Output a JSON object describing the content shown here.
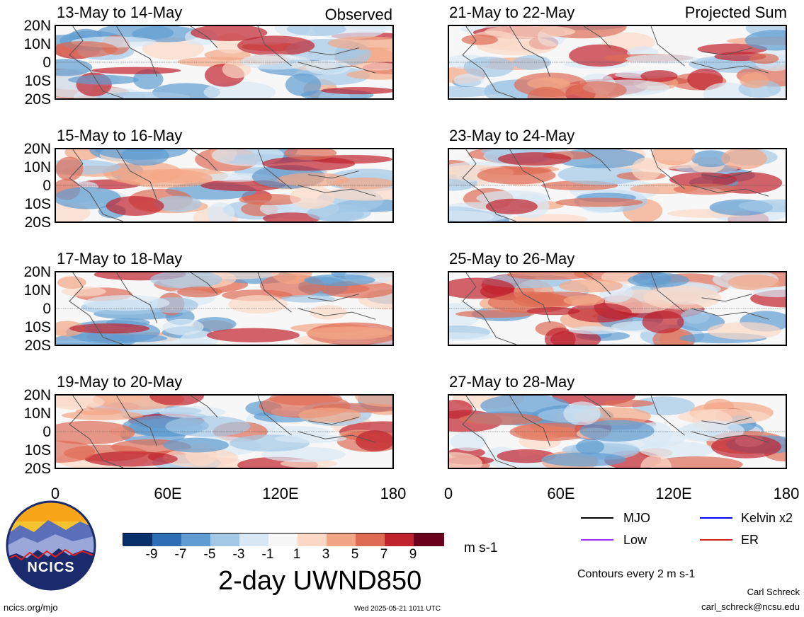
{
  "colors": {
    "neg9": "#08306b",
    "neg7": "#2e6eb5",
    "neg5": "#5f9cd1",
    "neg3": "#a3c8e6",
    "neg1": "#d8e8f5",
    "zero": "#f7f7f7",
    "pos1": "#fbd9c6",
    "pos3": "#f3a685",
    "pos5": "#de6c55",
    "pos7": "#c0222e",
    "pos9": "#6b001c",
    "mjo": "#000000",
    "low": "#9b30ff",
    "kelvin": "#0000ff",
    "er": "#cc2222"
  },
  "panels_left": [
    {
      "title": "13-May to 14-May",
      "label_right": "Observed"
    },
    {
      "title": "15-May to 16-May",
      "label_right": ""
    },
    {
      "title": "17-May to 18-May",
      "label_right": ""
    },
    {
      "title": "19-May to 20-May",
      "label_right": ""
    }
  ],
  "panels_right": [
    {
      "title": "21-May to 22-May",
      "label_right": "Projected Sum"
    },
    {
      "title": "23-May to 24-May",
      "label_right": ""
    },
    {
      "title": "25-May to 26-May",
      "label_right": ""
    },
    {
      "title": "27-May to 28-May",
      "label_right": ""
    }
  ],
  "y_ticks": [
    "20N",
    "10N",
    "0",
    "10S",
    "20S"
  ],
  "x_ticks": [
    "0",
    "60E",
    "120E",
    "180"
  ],
  "colorbar": {
    "ticks": [
      "-9",
      "-7",
      "-5",
      "-3",
      "-1",
      "1",
      "3",
      "5",
      "7",
      "9"
    ],
    "units": "m s-1",
    "title": "2-day UWND850"
  },
  "legend": {
    "mjo": "MJO",
    "kelvin": "Kelvin x2",
    "low": "Low",
    "er": "ER",
    "contours_note": "Contours every 2 m s-1"
  },
  "logo_text": "NCICS",
  "footer": {
    "left_url": "ncics.org/mjo",
    "timestamp": "Wed 2025-05-21 1011 UTC",
    "author": "Carl Schreck",
    "email": "carl_schreck@ncsu.edu"
  }
}
